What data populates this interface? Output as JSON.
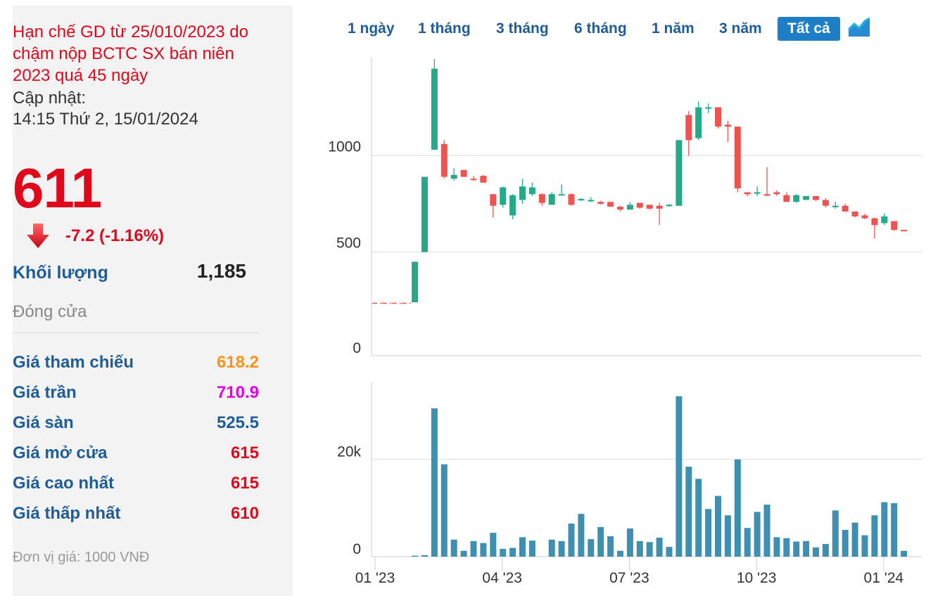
{
  "info": {
    "notice": "Hạn chế GD từ 25/010/2023 do chậm nộp BCTC SX bán niên 2023 quá 45 ngày",
    "update_label": "Cập nhật:",
    "update_time": "14:15 Thứ 2, 15/01/2024",
    "price": "611",
    "change": "-7.2 (-1.16%)",
    "volume_label": "Khối lượng",
    "volume_value": "1,185",
    "status": "Đóng cửa",
    "unit": "Đơn vị giá: 1000 VNĐ",
    "rows": [
      {
        "label": "Giá tham chiếu",
        "value": "618.2",
        "color": "#f7931e"
      },
      {
        "label": "Giá trần",
        "value": "710.9",
        "color": "#e600e6"
      },
      {
        "label": "Giá sàn",
        "value": "525.5",
        "color": "#1f5d99"
      },
      {
        "label": "Giá mở cửa",
        "value": "615",
        "color": "#e0081b"
      },
      {
        "label": "Giá cao nhất",
        "value": "615",
        "color": "#e0081b"
      },
      {
        "label": "Giá thấp nhất",
        "value": "610",
        "color": "#e0081b"
      }
    ]
  },
  "ranges": [
    "1 ngày",
    "1 tháng",
    "3 tháng",
    "6 tháng",
    "1 năm",
    "3 năm",
    "Tất cả"
  ],
  "active_range": "Tất cả",
  "colors": {
    "up": "#26a889",
    "down": "#ef5350",
    "volume": "#3f8fb0",
    "accent": "#1f7fc6"
  },
  "chart_data": [
    {
      "type": "candlestick",
      "ylim": [
        0,
        1500
      ],
      "yticks": [
        0,
        500,
        1000
      ],
      "ytick_labels": [
        "0",
        "500",
        "1000"
      ],
      "x_tick_labels": [
        "01 '23",
        "04 '23",
        "07 '23",
        "10 '23",
        "01 '24"
      ],
      "x_ticks": [
        0,
        13,
        26,
        39,
        52
      ],
      "candles": [
        {
          "o": 235,
          "h": 235,
          "l": 235,
          "c": 235,
          "flat": true
        },
        {
          "o": 235,
          "h": 235,
          "l": 235,
          "c": 235,
          "flat": true
        },
        {
          "o": 235,
          "h": 235,
          "l": 235,
          "c": 235,
          "flat": true
        },
        {
          "o": 235,
          "h": 235,
          "l": 235,
          "c": 235,
          "flat": true
        },
        {
          "o": 240,
          "h": 450,
          "l": 240,
          "c": 450
        },
        {
          "o": 500,
          "h": 890,
          "l": 500,
          "c": 890
        },
        {
          "o": 1030,
          "h": 1500,
          "l": 1030,
          "c": 1450
        },
        {
          "o": 1060,
          "h": 1080,
          "l": 880,
          "c": 890
        },
        {
          "o": 880,
          "h": 935,
          "l": 870,
          "c": 900
        },
        {
          "o": 925,
          "h": 925,
          "l": 890,
          "c": 890
        },
        {
          "o": 880,
          "h": 895,
          "l": 870,
          "c": 875
        },
        {
          "o": 895,
          "h": 900,
          "l": 860,
          "c": 860
        },
        {
          "o": 800,
          "h": 800,
          "l": 680,
          "c": 740
        },
        {
          "o": 745,
          "h": 840,
          "l": 730,
          "c": 835
        },
        {
          "o": 690,
          "h": 800,
          "l": 670,
          "c": 795
        },
        {
          "o": 770,
          "h": 880,
          "l": 750,
          "c": 840
        },
        {
          "o": 800,
          "h": 860,
          "l": 790,
          "c": 835
        },
        {
          "o": 800,
          "h": 805,
          "l": 740,
          "c": 755
        },
        {
          "o": 745,
          "h": 810,
          "l": 745,
          "c": 800
        },
        {
          "o": 800,
          "h": 850,
          "l": 800,
          "c": 800
        },
        {
          "o": 800,
          "h": 805,
          "l": 740,
          "c": 745
        },
        {
          "o": 770,
          "h": 780,
          "l": 765,
          "c": 775
        },
        {
          "o": 770,
          "h": 785,
          "l": 760,
          "c": 770
        },
        {
          "o": 760,
          "h": 765,
          "l": 745,
          "c": 750
        },
        {
          "o": 760,
          "h": 760,
          "l": 735,
          "c": 735
        },
        {
          "o": 735,
          "h": 740,
          "l": 710,
          "c": 720
        },
        {
          "o": 720,
          "h": 760,
          "l": 720,
          "c": 745
        },
        {
          "o": 755,
          "h": 755,
          "l": 725,
          "c": 730
        },
        {
          "o": 745,
          "h": 745,
          "l": 720,
          "c": 725
        },
        {
          "o": 740,
          "h": 755,
          "l": 640,
          "c": 725
        },
        {
          "o": 745,
          "h": 750,
          "l": 735,
          "c": 745
        },
        {
          "o": 740,
          "h": 1080,
          "l": 740,
          "c": 1080
        },
        {
          "o": 1210,
          "h": 1230,
          "l": 1000,
          "c": 1080
        },
        {
          "o": 1090,
          "h": 1280,
          "l": 1080,
          "c": 1250
        },
        {
          "o": 1250,
          "h": 1270,
          "l": 1220,
          "c": 1250
        },
        {
          "o": 1250,
          "h": 1250,
          "l": 1140,
          "c": 1150
        },
        {
          "o": 1160,
          "h": 1180,
          "l": 1070,
          "c": 1150
        },
        {
          "o": 1150,
          "h": 1150,
          "l": 810,
          "c": 830
        },
        {
          "o": 810,
          "h": 810,
          "l": 790,
          "c": 800
        },
        {
          "o": 805,
          "h": 840,
          "l": 790,
          "c": 810
        },
        {
          "o": 800,
          "h": 940,
          "l": 790,
          "c": 795
        },
        {
          "o": 810,
          "h": 820,
          "l": 790,
          "c": 800
        },
        {
          "o": 795,
          "h": 810,
          "l": 760,
          "c": 760
        },
        {
          "o": 760,
          "h": 800,
          "l": 755,
          "c": 795
        },
        {
          "o": 770,
          "h": 790,
          "l": 770,
          "c": 790
        },
        {
          "o": 790,
          "h": 790,
          "l": 765,
          "c": 770
        },
        {
          "o": 770,
          "h": 780,
          "l": 730,
          "c": 740
        },
        {
          "o": 740,
          "h": 760,
          "l": 725,
          "c": 740
        },
        {
          "o": 740,
          "h": 750,
          "l": 710,
          "c": 710
        },
        {
          "o": 710,
          "h": 710,
          "l": 680,
          "c": 685
        },
        {
          "o": 690,
          "h": 700,
          "l": 670,
          "c": 675
        },
        {
          "o": 675,
          "h": 680,
          "l": 570,
          "c": 640
        },
        {
          "o": 650,
          "h": 700,
          "l": 640,
          "c": 685
        },
        {
          "o": 660,
          "h": 660,
          "l": 610,
          "c": 615
        },
        {
          "o": 615,
          "h": 615,
          "l": 610,
          "c": 611
        }
      ]
    },
    {
      "type": "bar",
      "ylim": [
        0,
        36000
      ],
      "yticks": [
        0,
        20000
      ],
      "ytick_labels": [
        "0",
        "20k"
      ],
      "values": [
        0,
        0,
        0,
        0,
        200,
        300,
        30500,
        19000,
        3500,
        1200,
        3200,
        2800,
        4900,
        1600,
        1800,
        4000,
        3300,
        0,
        3500,
        3200,
        6800,
        8800,
        3600,
        6100,
        4200,
        1200,
        5800,
        3200,
        3000,
        3900,
        2000,
        33000,
        18500,
        16000,
        9800,
        12500,
        8500,
        20000,
        5900,
        9200,
        10700,
        4000,
        3800,
        3100,
        3200,
        1900,
        2600,
        9500,
        5500,
        7000,
        4400,
        8500,
        11200,
        11000,
        1200
      ]
    }
  ]
}
